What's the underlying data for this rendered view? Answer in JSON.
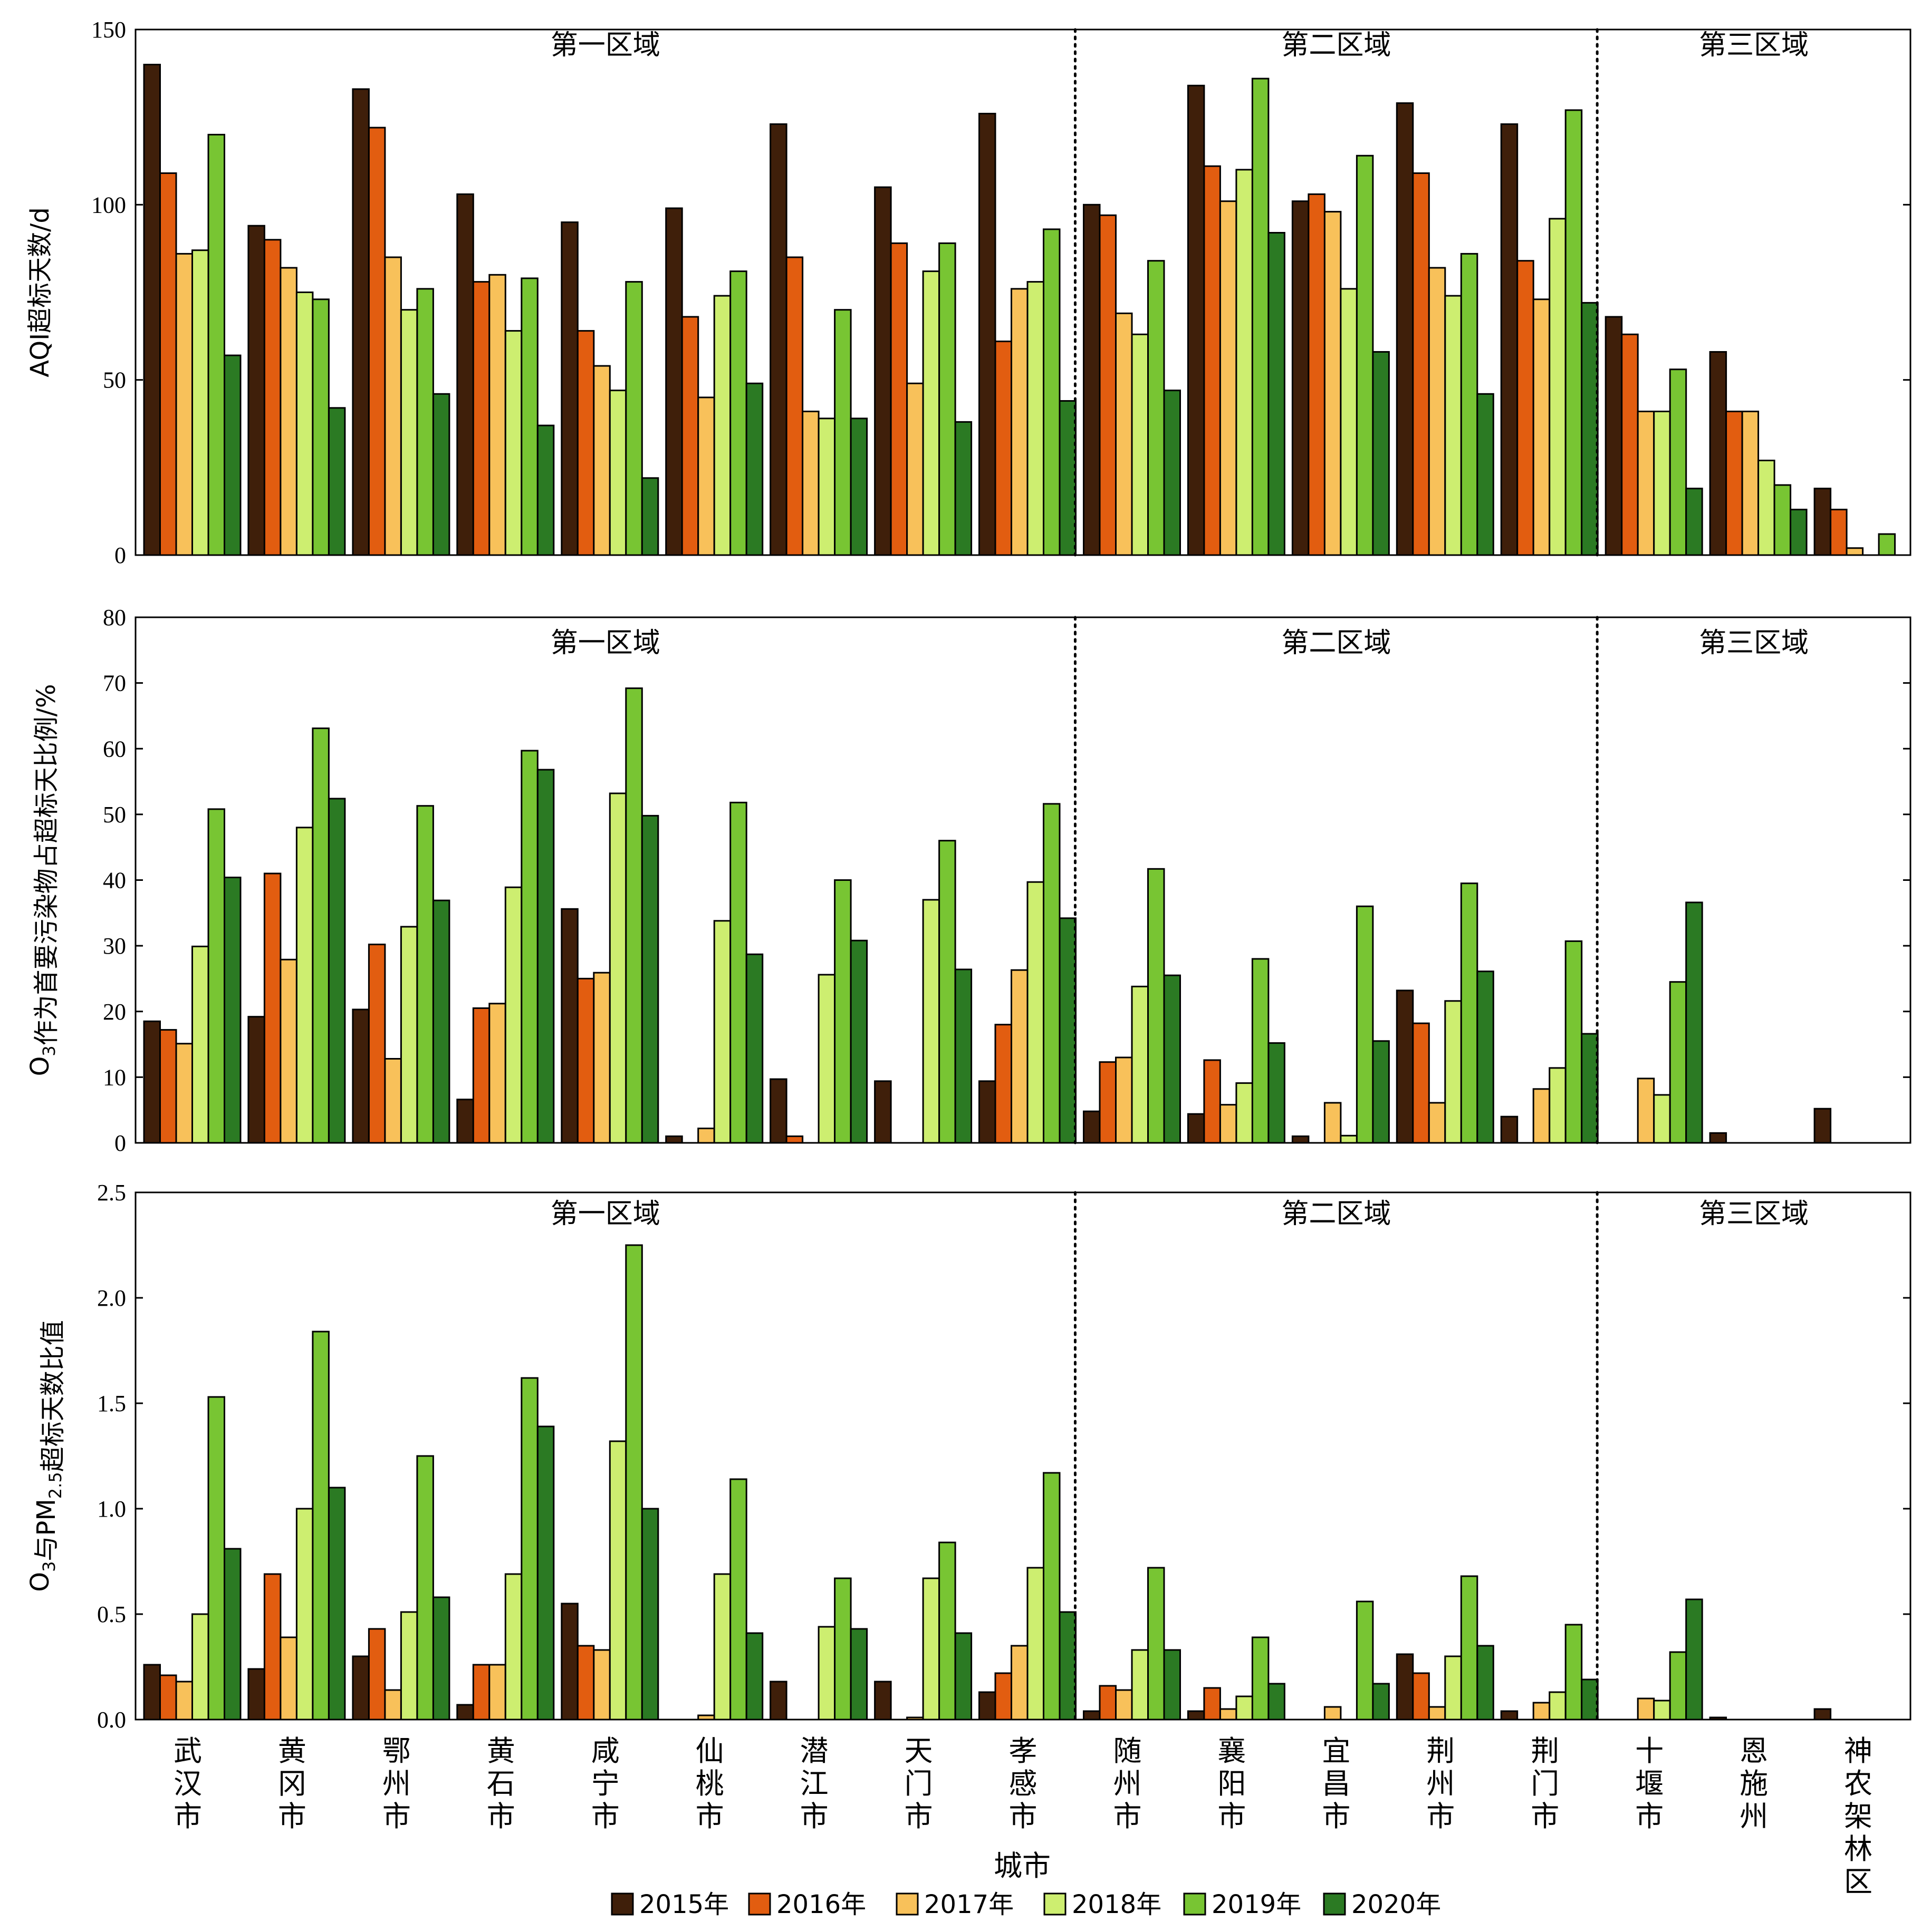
{
  "chart_data": [
    {
      "type": "bar",
      "ylabel": "AQI超标天数/d",
      "ylim": [
        0,
        150
      ],
      "yticks": [
        0,
        50,
        100,
        150
      ],
      "region_labels": [
        "第一区域",
        "第二区域",
        "第三区域"
      ],
      "series": [
        {
          "name": "2015年",
          "values": [
            140,
            94,
            133,
            103,
            95,
            99,
            123,
            105,
            126,
            100,
            134,
            101,
            129,
            123,
            68,
            58,
            19
          ]
        },
        {
          "name": "2016年",
          "values": [
            109,
            90,
            122,
            78,
            64,
            68,
            85,
            89,
            61,
            97,
            111,
            103,
            109,
            84,
            63,
            41,
            13
          ]
        },
        {
          "name": "2017年",
          "values": [
            86,
            82,
            85,
            80,
            54,
            45,
            41,
            49,
            76,
            69,
            101,
            98,
            82,
            73,
            41,
            41,
            2
          ]
        },
        {
          "name": "2018年",
          "values": [
            87,
            75,
            70,
            64,
            47,
            74,
            39,
            81,
            78,
            63,
            110,
            76,
            74,
            96,
            41,
            27,
            0
          ]
        },
        {
          "name": "2019年",
          "values": [
            120,
            73,
            76,
            79,
            78,
            81,
            70,
            89,
            93,
            84,
            136,
            114,
            86,
            127,
            53,
            20,
            6
          ]
        },
        {
          "name": "2020年",
          "values": [
            57,
            42,
            46,
            37,
            22,
            49,
            39,
            38,
            44,
            47,
            92,
            58,
            46,
            72,
            19,
            13,
            0
          ]
        }
      ]
    },
    {
      "type": "bar",
      "ylabel": "O3作为首要污染物占超标天比例/%",
      "ylim": [
        0,
        80
      ],
      "yticks": [
        0,
        10,
        20,
        30,
        40,
        50,
        60,
        70,
        80
      ],
      "region_labels": [
        "第一区域",
        "第二区域",
        "第三区域"
      ],
      "series": [
        {
          "name": "2015年",
          "values": [
            18.5,
            19.2,
            20.3,
            6.6,
            35.6,
            1.0,
            9.7,
            9.4,
            9.4,
            4.8,
            4.4,
            1.0,
            23.2,
            4.0,
            0,
            1.5,
            5.2
          ]
        },
        {
          "name": "2016年",
          "values": [
            17.2,
            41.0,
            30.2,
            20.5,
            25.0,
            0,
            1.0,
            0,
            18.0,
            12.3,
            12.6,
            0,
            18.2,
            0,
            0,
            0,
            0
          ]
        },
        {
          "name": "2017年",
          "values": [
            15.1,
            27.9,
            12.8,
            21.2,
            25.9,
            2.2,
            0,
            0,
            26.3,
            13.0,
            5.8,
            6.1,
            6.1,
            8.2,
            9.8,
            0,
            0
          ]
        },
        {
          "name": "2018年",
          "values": [
            29.9,
            48.0,
            32.9,
            38.9,
            53.2,
            33.8,
            25.6,
            37.0,
            39.7,
            23.8,
            9.1,
            1.1,
            21.6,
            11.4,
            7.3,
            0,
            0
          ]
        },
        {
          "name": "2019年",
          "values": [
            50.8,
            63.1,
            51.3,
            59.7,
            69.2,
            51.8,
            40.0,
            46.0,
            51.6,
            41.7,
            28.0,
            36.0,
            39.5,
            30.7,
            24.5,
            0,
            0
          ]
        },
        {
          "name": "2020年",
          "values": [
            40.4,
            52.4,
            36.9,
            56.8,
            49.8,
            28.7,
            30.8,
            26.4,
            34.2,
            25.5,
            15.2,
            15.5,
            26.1,
            16.6,
            36.6,
            0,
            0
          ]
        }
      ]
    },
    {
      "type": "bar",
      "ylabel": "O3与PM2.5超标天数比值",
      "ylim": [
        0,
        2.5
      ],
      "yticks": [
        0,
        0.5,
        1.0,
        1.5,
        2.0,
        2.5
      ],
      "xlabel": "城市",
      "region_labels": [
        "第一区域",
        "第二区域",
        "第三区域"
      ],
      "categories": [
        "武汉市",
        "黄冈市",
        "鄂州市",
        "黄石市",
        "咸宁市",
        "仙桃市",
        "潜江市",
        "天门市",
        "孝感市",
        "随州市",
        "襄阳市",
        "宜昌市",
        "荆州市",
        "荆门市",
        "十堰市",
        "恩施州",
        "神农架林区"
      ],
      "series": [
        {
          "name": "2015年",
          "values": [
            0.26,
            0.24,
            0.3,
            0.07,
            0.55,
            0.0,
            0.18,
            0.18,
            0.13,
            0.04,
            0.04,
            0.0,
            0.31,
            0.04,
            0,
            0.01,
            0.05
          ]
        },
        {
          "name": "2016年",
          "values": [
            0.21,
            0.69,
            0.43,
            0.26,
            0.35,
            0,
            0.0,
            0,
            0.22,
            0.16,
            0.15,
            0,
            0.22,
            0,
            0,
            0,
            0
          ]
        },
        {
          "name": "2017年",
          "values": [
            0.18,
            0.39,
            0.14,
            0.26,
            0.33,
            0.02,
            0,
            0.01,
            0.35,
            0.14,
            0.05,
            0.06,
            0.06,
            0.08,
            0.1,
            0,
            0
          ]
        },
        {
          "name": "2018年",
          "values": [
            0.5,
            1.0,
            0.51,
            0.69,
            1.32,
            0.69,
            0.44,
            0.67,
            0.72,
            0.33,
            0.11,
            0.0,
            0.3,
            0.13,
            0.09,
            0,
            0
          ]
        },
        {
          "name": "2019年",
          "values": [
            1.53,
            1.84,
            1.25,
            1.62,
            2.25,
            1.14,
            0.67,
            0.84,
            1.17,
            0.72,
            0.39,
            0.56,
            0.68,
            0.45,
            0.32,
            0,
            0
          ]
        },
        {
          "name": "2020年",
          "values": [
            0.81,
            1.1,
            0.58,
            1.39,
            1.0,
            0.41,
            0.43,
            0.41,
            0.51,
            0.33,
            0.17,
            0.17,
            0.35,
            0.19,
            0.57,
            0,
            0
          ]
        }
      ]
    }
  ],
  "colors": [
    "#3f1f0a",
    "#e25d10",
    "#f8c15a",
    "#cdee70",
    "#78c533",
    "#2b7a23"
  ],
  "legend": {
    "position": "bottom",
    "labels": [
      "2015年",
      "2016年",
      "2017年",
      "2018年",
      "2019年",
      "2020年"
    ]
  }
}
